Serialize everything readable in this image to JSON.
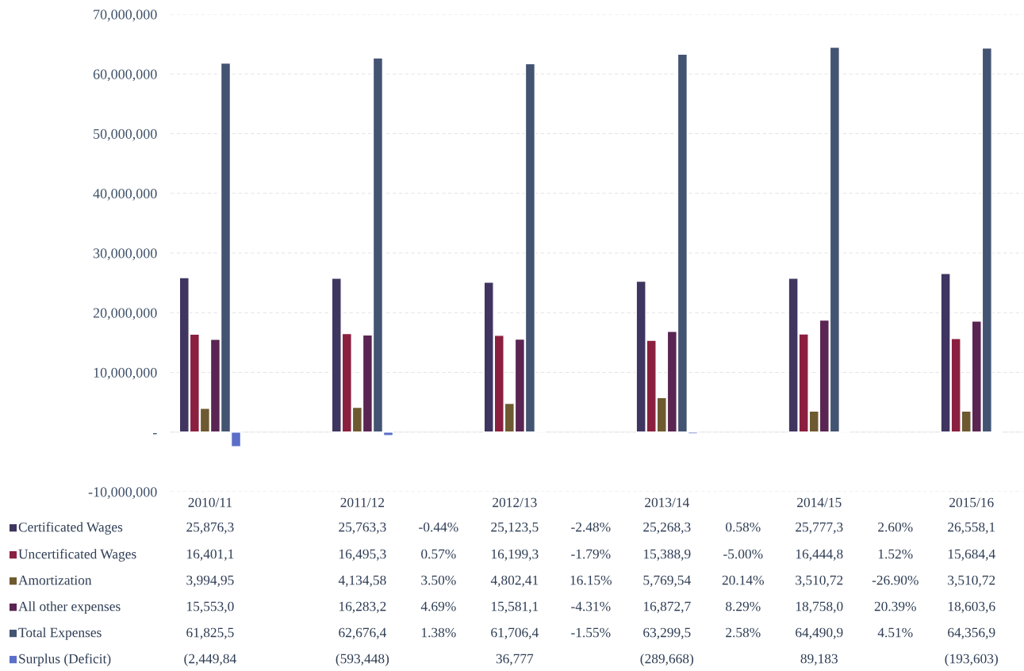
{
  "chart_data": {
    "type": "bar",
    "categories": [
      "2010/11",
      "2011/12",
      "2012/13",
      "2013/14",
      "2014/15",
      "2015/16"
    ],
    "series": [
      {
        "name": "Certificated Wages",
        "color": "#3f3560",
        "values": [
          25876300,
          25763300,
          25123500,
          25268300,
          25777300,
          26558100
        ],
        "value_labels": [
          "25,876,3",
          "25,763,3",
          "25,123,5",
          "25,268,3",
          "25,777,3",
          "26,558,1"
        ]
      },
      {
        "name": "Uncertificated Wages",
        "color": "#8b1f3f",
        "values": [
          16401100,
          16495300,
          16199300,
          15388900,
          16444800,
          15684400
        ],
        "value_labels": [
          "16,401,1",
          "16,495,3",
          "16,199,3",
          "15,388,9",
          "16,444,8",
          "15,684,4"
        ]
      },
      {
        "name": "Amortization",
        "color": "#6e5a30",
        "values": [
          3994950,
          4134580,
          4802410,
          5769540,
          3510720,
          3510720
        ],
        "value_labels": [
          "3,994,95",
          "4,134,58",
          "4,802,41",
          "5,769,54",
          "3,510,72",
          "3,510,72"
        ]
      },
      {
        "name": "All other expenses",
        "color": "#5a2552",
        "values": [
          15553000,
          16283200,
          15581100,
          16872700,
          18758000,
          18603600
        ],
        "value_labels": [
          "15,553,0",
          "16,283,2",
          "15,581,1",
          "16,872,7",
          "18,758,0",
          "18,603,6"
        ]
      },
      {
        "name": "Total Expenses",
        "color": "#435372",
        "values": [
          61825500,
          62676400,
          61706400,
          63299500,
          64490900,
          64356900
        ],
        "value_labels": [
          "61,825,5",
          "62,676,4",
          "61,706,4",
          "63,299,5",
          "64,490,9",
          "64,356,9"
        ]
      },
      {
        "name": "Surplus (Deficit)",
        "color": "#5b6fc8",
        "values": [
          -2449840,
          -593448,
          36777,
          -289668,
          89183,
          -193603
        ],
        "value_labels": [
          "(2,449,84",
          "(593,448)",
          "36,777",
          "(289,668)",
          "89,183",
          "(193,603)"
        ]
      }
    ],
    "annotations": [
      "-0.44%",
      "-2.48%",
      "0.58%",
      "2.60%",
      "0.57%",
      "-1.79%",
      "-5.00%",
      "1.52%",
      "3.50%",
      "16.15%",
      "20.14%",
      "-26.90%",
      "4.69%",
      "-4.31%",
      "8.29%",
      "20.39%",
      "1.38%",
      "-1.55%",
      "2.58%",
      "4.51%"
    ],
    "ylim": [
      -10000000,
      70000000
    ],
    "yticks": [
      {
        "value": -10000000,
        "label": "-10,000,000"
      },
      {
        "value": 0,
        "label": "-"
      },
      {
        "value": 10000000,
        "label": "10,000,000"
      },
      {
        "value": 20000000,
        "label": "20,000,000"
      },
      {
        "value": 30000000,
        "label": "30,000,000"
      },
      {
        "value": 40000000,
        "label": "40,000,000"
      },
      {
        "value": 50000000,
        "label": "50,000,000"
      },
      {
        "value": 60000000,
        "label": "60,000,000"
      },
      {
        "value": 70000000,
        "label": "70,000,000"
      }
    ],
    "grid": "y",
    "legend": "bottom"
  }
}
